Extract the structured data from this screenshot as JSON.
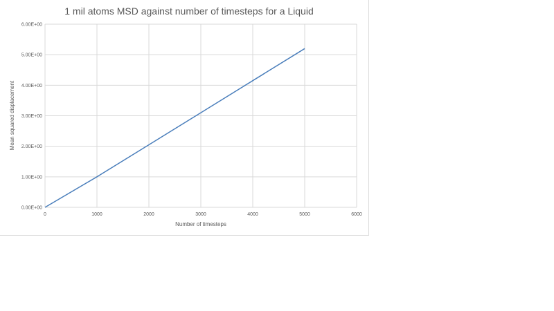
{
  "chart_data": {
    "type": "line",
    "title": "1 mil atoms MSD against number of timesteps for a Liquid",
    "xlabel": "Number  of timesteps",
    "ylabel": "Mean squared displacement",
    "xlim": [
      0,
      6000
    ],
    "ylim": [
      0,
      6
    ],
    "x_ticks": [
      0,
      1000,
      2000,
      3000,
      4000,
      5000,
      6000
    ],
    "x_tick_labels": [
      "0",
      "1000",
      "2000",
      "3000",
      "4000",
      "5000",
      "6000"
    ],
    "y_ticks": [
      0,
      1,
      2,
      3,
      4,
      5,
      6
    ],
    "y_tick_labels": [
      "0.00E+00",
      "1.00E+00",
      "2.00E+00",
      "3.00E+00",
      "4.00E+00",
      "5.00E+00",
      "6.00E+00"
    ],
    "grid": true,
    "legend": "none",
    "series": [
      {
        "color": "#4a7ebb",
        "x": [
          0,
          1000,
          2000,
          3000,
          4000,
          5000
        ],
        "y": [
          0,
          1.0,
          2.05,
          3.1,
          4.15,
          5.2
        ]
      }
    ]
  }
}
